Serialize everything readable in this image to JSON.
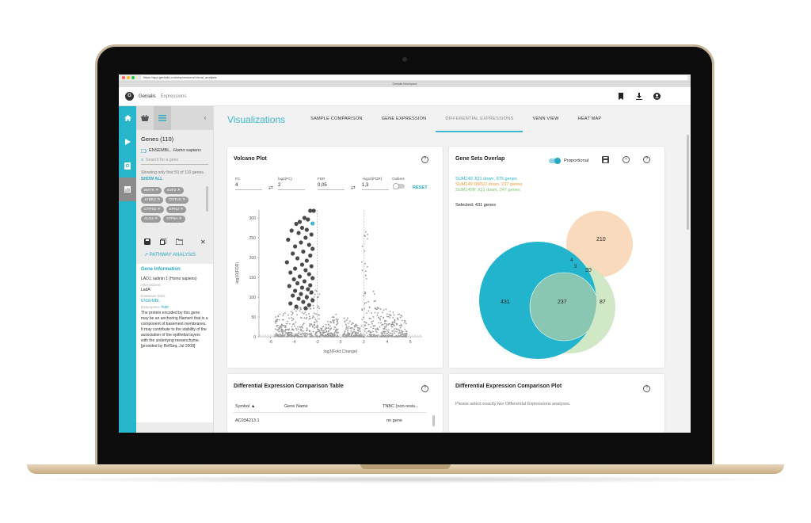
{
  "browser": {
    "url": "https://app.genialis.com/expressions/visual_analysis",
    "tab": "Genialis Workspace"
  },
  "header": {
    "logo": "G",
    "brand": "Genialis",
    "section": "Expressions",
    "icons": [
      "bookmark-icon",
      "download-icon",
      "account-icon"
    ]
  },
  "panel": {
    "title": "Genes (110)",
    "source": "ENSEMBL,",
    "species": "Homo sapiens",
    "search_placeholder": "Search for a gene",
    "note": "Showing only first 50 of 110 genes.",
    "show_all": "SHOW ALL",
    "chips": [
      "MATK",
      "E2F2",
      "JADE2",
      "CNTLN",
      "CTPS2",
      "EPN3",
      "ALX4",
      "ATP9A"
    ],
    "pathway": "PATHWAY ANALYSIS",
    "gene_info": {
      "heading": "Gene Information",
      "name": "LAD1: ladinin 1 (Homo sapiens)",
      "alt_label": "Alternatives:",
      "alt": "LadA",
      "db_label": "Database links:",
      "db": "ENSEMBL",
      "desc_label": "Description:",
      "hide": "hide",
      "desc": "The protein encoded by this gene may be an anchoring filament that is a component of basement membranes. It may contribute to the stability of the association of the epithelial layers with the underlying mesenchyme. [provided by RefSeq, Jul 2008]"
    }
  },
  "tabs": {
    "title": "Visualizations",
    "items": [
      "SAMPLE COMPARISON",
      "GENE EXPRESSION",
      "DIFFERENTIAL EXPRESSIONS",
      "VENN VIEW",
      "HEAT MAP"
    ],
    "active": 2
  },
  "volcano": {
    "title": "Volcano Plot",
    "fc_label": "FC",
    "fc": "4",
    "log2fc_label": "log2(FC)",
    "log2fc": "2",
    "fdr_label": "FDR",
    "fdr": "0,05",
    "log10fdr_label": "-log10(FDR)",
    "log10fdr": "1,3",
    "outliers": "Outliers",
    "reset": "RESET"
  },
  "chart_data": {
    "type": "scatter",
    "title": "Volcano Plot",
    "xlabel": "log2(Fold Change)",
    "ylabel": "-log10(FDR)",
    "xlim": [
      -7,
      7
    ],
    "ylim": [
      0,
      320
    ],
    "xticks": [
      -6,
      -4,
      -2,
      0,
      2,
      4,
      6
    ],
    "yticks": [
      0,
      50,
      100,
      150,
      200,
      250,
      300
    ],
    "thresholds": {
      "log2fc": 2,
      "neg_log10_fdr": 1.3
    },
    "highlight_color": "#3bb8d0",
    "highlighted_point": {
      "x": -2.4,
      "y": 286
    },
    "significant_down": [
      {
        "x": -2.3,
        "y": 318
      },
      {
        "x": -2.6,
        "y": 318
      },
      {
        "x": -3.5,
        "y": 290
      },
      {
        "x": -3.1,
        "y": 300
      },
      {
        "x": -2.8,
        "y": 296
      },
      {
        "x": -3.8,
        "y": 285
      },
      {
        "x": -3.3,
        "y": 275
      },
      {
        "x": -2.9,
        "y": 270
      },
      {
        "x": -4.2,
        "y": 268
      },
      {
        "x": -3.6,
        "y": 262
      },
      {
        "x": -2.5,
        "y": 258
      },
      {
        "x": -3.0,
        "y": 250
      },
      {
        "x": -4.5,
        "y": 245
      },
      {
        "x": -3.4,
        "y": 238
      },
      {
        "x": -2.7,
        "y": 232
      },
      {
        "x": -3.9,
        "y": 228
      },
      {
        "x": -2.4,
        "y": 222
      },
      {
        "x": -3.2,
        "y": 215
      },
      {
        "x": -4.1,
        "y": 210
      },
      {
        "x": -2.6,
        "y": 205
      },
      {
        "x": -3.7,
        "y": 198
      },
      {
        "x": -2.9,
        "y": 192
      },
      {
        "x": -4.6,
        "y": 188
      },
      {
        "x": -3.3,
        "y": 182
      },
      {
        "x": -2.5,
        "y": 178
      },
      {
        "x": -3.9,
        "y": 172
      },
      {
        "x": -3.0,
        "y": 168
      },
      {
        "x": -4.3,
        "y": 162
      },
      {
        "x": -2.7,
        "y": 158
      },
      {
        "x": -3.5,
        "y": 152
      },
      {
        "x": -2.4,
        "y": 148
      },
      {
        "x": -4.0,
        "y": 145
      },
      {
        "x": -3.1,
        "y": 140
      },
      {
        "x": -3.7,
        "y": 135
      },
      {
        "x": -2.6,
        "y": 130
      },
      {
        "x": -4.4,
        "y": 128
      },
      {
        "x": -3.3,
        "y": 124
      },
      {
        "x": -2.8,
        "y": 120
      },
      {
        "x": -3.9,
        "y": 116
      },
      {
        "x": -2.5,
        "y": 112
      },
      {
        "x": -3.4,
        "y": 108
      },
      {
        "x": -4.1,
        "y": 104
      },
      {
        "x": -2.9,
        "y": 100
      },
      {
        "x": -3.6,
        "y": 96
      },
      {
        "x": -2.4,
        "y": 92
      },
      {
        "x": -3.2,
        "y": 88
      },
      {
        "x": -4.3,
        "y": 84
      },
      {
        "x": -2.7,
        "y": 80
      },
      {
        "x": -3.8,
        "y": 76
      },
      {
        "x": -3.0,
        "y": 72
      }
    ]
  },
  "venn": {
    "title": "Gene Sets Overlap",
    "proportional": "Proportional",
    "sets": [
      {
        "label": "SUM149 JQ1 down, 675 genes",
        "color": "#22b4cc"
      },
      {
        "label": "SUM149 DMSO down, 237 genes",
        "color": "#f39a3a"
      },
      {
        "label": "SUM149R JQ1 down, 347 genes",
        "color": "#7ec46d"
      }
    ],
    "selected": "Selected: 431 genes",
    "regions": {
      "a": "431",
      "ab": "237",
      "c": "87",
      "b": "210",
      "bc": "20",
      "t1": "4",
      "t2": "3"
    }
  },
  "table": {
    "title": "Differential Expression Comparison Table",
    "cols": [
      "Symbol",
      "Gene Name",
      "TNBC (non-resis..."
    ],
    "rows": [
      [
        "AC034213.1",
        "",
        "no gene"
      ]
    ]
  },
  "plot2": {
    "title": "Differential Expression Comparison Plot",
    "message": "Please select exactly two Differential Expressions analyses."
  }
}
